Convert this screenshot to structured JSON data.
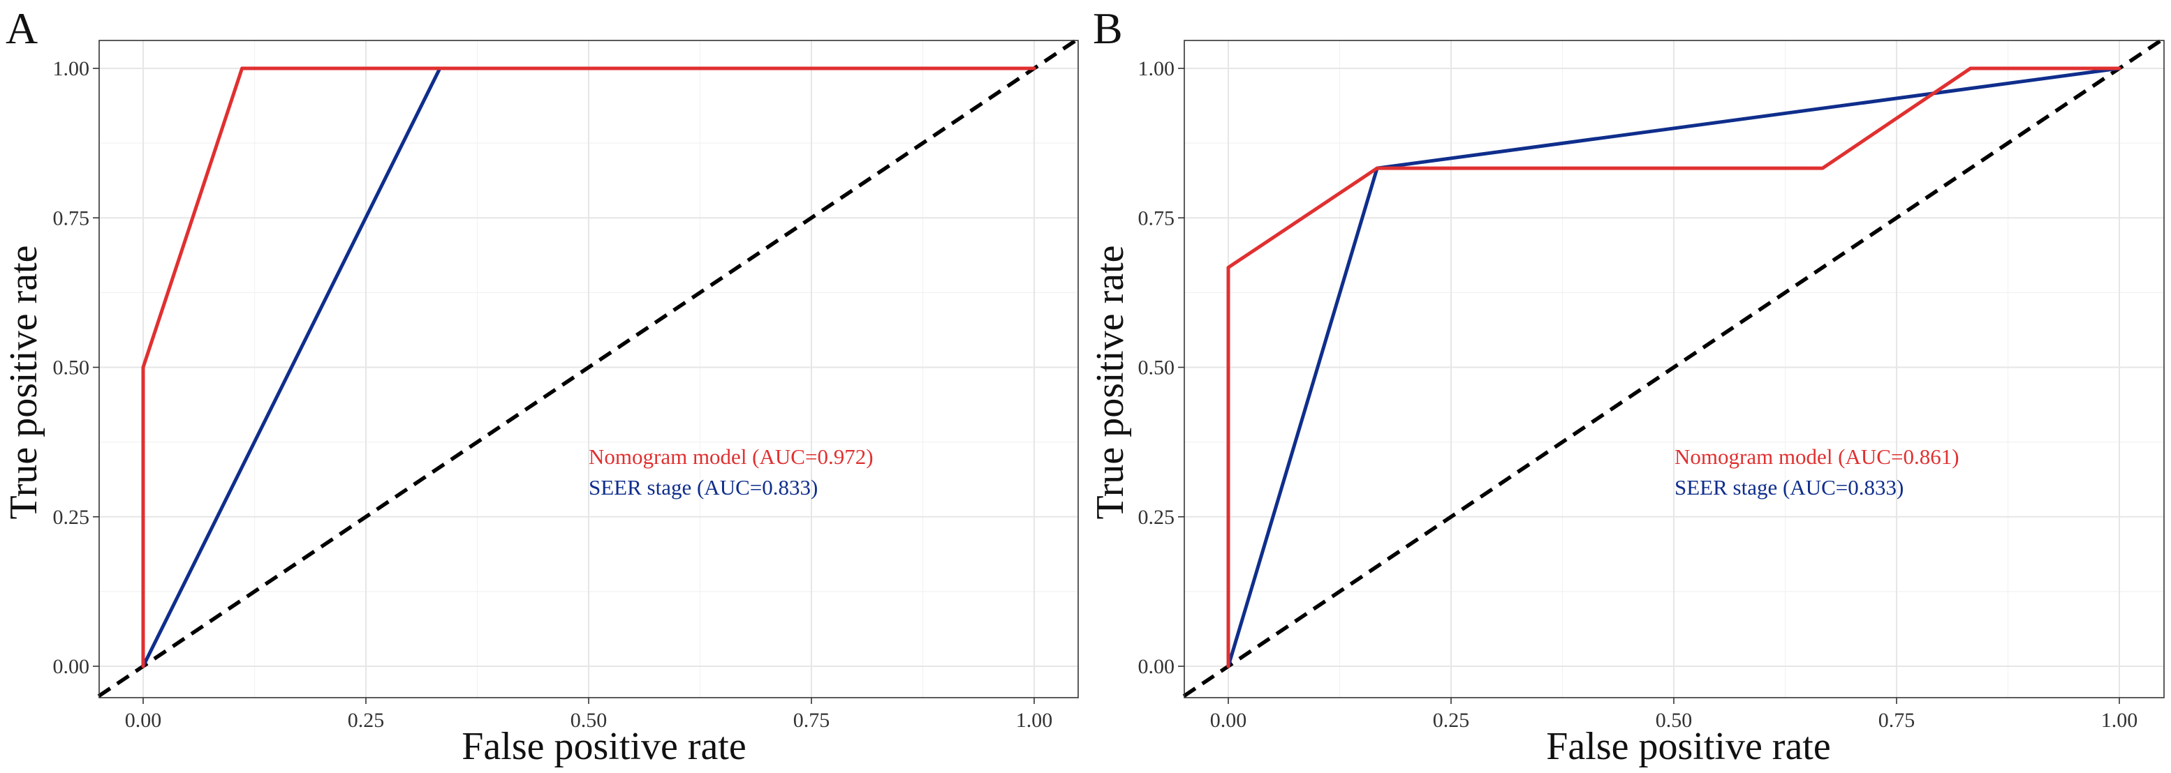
{
  "chart_data": [
    {
      "type": "line",
      "panel_label": "A",
      "xlabel": "False positive rate",
      "ylabel": "True positive rate",
      "xlim": [
        0,
        1
      ],
      "ylim": [
        0,
        1
      ],
      "x_ticks": [
        0,
        0.25,
        0.5,
        0.75,
        1
      ],
      "y_ticks": [
        0,
        0.25,
        0.5,
        0.75,
        1
      ],
      "x_tick_labels": [
        "0.00",
        "0.25",
        "0.50",
        "0.75",
        "1.00"
      ],
      "y_tick_labels": [
        "0.00",
        "0.25",
        "0.50",
        "0.75",
        "1.00"
      ],
      "grid": true,
      "legend_position": "center-right",
      "reference_line": {
        "style": "dashed",
        "color": "#000000",
        "x": [
          -0.05,
          1.05
        ],
        "y": [
          -0.05,
          1.05
        ]
      },
      "series": [
        {
          "name": "Nomogram model",
          "legend_label": "Nomogram model (AUC=0.972)",
          "auc": 0.972,
          "color": "#E03030",
          "x": [
            0,
            0,
            0.111,
            1
          ],
          "y": [
            0,
            0.5,
            1,
            1
          ]
        },
        {
          "name": "SEER stage",
          "legend_label": "SEER stage (AUC=0.833)",
          "auc": 0.833,
          "color": "#0F2E8C",
          "x": [
            0,
            0.333,
            1
          ],
          "y": [
            0,
            1,
            1
          ]
        }
      ]
    },
    {
      "type": "line",
      "panel_label": "B",
      "xlabel": "False positive rate",
      "ylabel": "True positive rate",
      "xlim": [
        0,
        1
      ],
      "ylim": [
        0,
        1
      ],
      "x_ticks": [
        0,
        0.25,
        0.5,
        0.75,
        1
      ],
      "y_ticks": [
        0,
        0.25,
        0.5,
        0.75,
        1
      ],
      "x_tick_labels": [
        "0.00",
        "0.25",
        "0.50",
        "0.75",
        "1.00"
      ],
      "y_tick_labels": [
        "0.00",
        "0.25",
        "0.50",
        "0.75",
        "1.00"
      ],
      "grid": true,
      "legend_position": "center-right",
      "reference_line": {
        "style": "dashed",
        "color": "#000000",
        "x": [
          -0.05,
          1.05
        ],
        "y": [
          -0.05,
          1.05
        ]
      },
      "series": [
        {
          "name": "Nomogram model",
          "legend_label": "Nomogram model (AUC=0.861)",
          "auc": 0.861,
          "color": "#E03030",
          "x": [
            0,
            0,
            0.167,
            0.667,
            0.833,
            1
          ],
          "y": [
            0,
            0.667,
            0.833,
            0.833,
            1,
            1
          ]
        },
        {
          "name": "SEER stage",
          "legend_label": "SEER stage (AUC=0.833)",
          "auc": 0.833,
          "color": "#0F2E8C",
          "x": [
            0,
            0.167,
            1
          ],
          "y": [
            0,
            0.833,
            1
          ]
        }
      ]
    }
  ]
}
